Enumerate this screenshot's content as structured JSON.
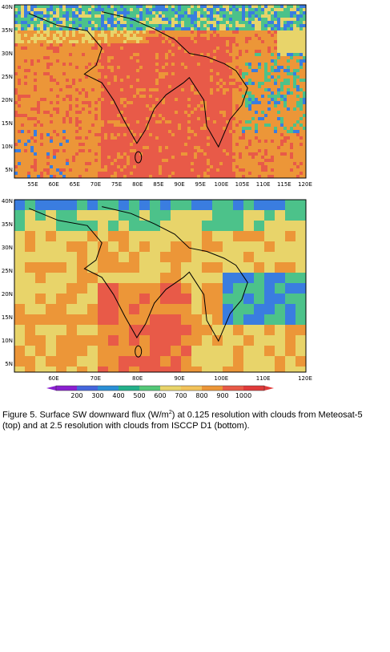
{
  "top_map": {
    "y_ticks": [
      "40N",
      "35N",
      "30N",
      "25N",
      "20N",
      "15N",
      "10N",
      "5N"
    ],
    "x_ticks": [
      "55E",
      "60E",
      "65E",
      "70E",
      "75E",
      "80E",
      "85E",
      "90E",
      "95E",
      "100E",
      "105E",
      "110E",
      "115E",
      "120E"
    ]
  },
  "bottom_map": {
    "y_ticks": [
      "40N",
      "35N",
      "30N",
      "25N",
      "20N",
      "15N",
      "10N",
      "5N"
    ],
    "x_ticks": [
      "60E",
      "70E",
      "80E",
      "90E",
      "100E",
      "110E",
      "120E"
    ]
  },
  "colorbar": {
    "labels": [
      "200",
      "300",
      "400",
      "500",
      "600",
      "700",
      "800",
      "900",
      "1000"
    ],
    "colors": [
      "#8a1fd0",
      "#4466dd",
      "#2a8fd6",
      "#23b08a",
      "#54c878",
      "#e8d46a",
      "#f2c35a",
      "#ec9638",
      "#e85a48",
      "#e03a3a"
    ]
  },
  "caption": {
    "part1": "Figure 5. Surface SW downward flux (W/m",
    "sup": "2",
    "part2": ") at 0.125 resolution with clouds from Meteosat-5  (top) and at 2.5 resolution with clouds from ISCCP D1 (bottom)."
  },
  "palette": {
    "red": "#e85a48",
    "orange": "#ec9638",
    "yellow": "#e8d46a",
    "green": "#4cc28a",
    "blue": "#3a7de0",
    "purple": "#8a1fd0"
  }
}
